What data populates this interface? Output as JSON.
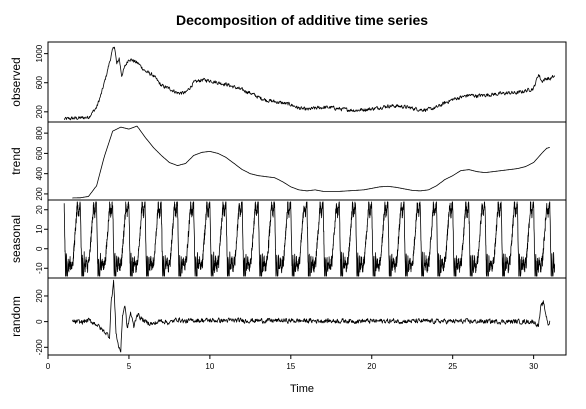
{
  "chart_data": {
    "type": "line",
    "title": "Decomposition of additive time series",
    "xlabel": "Time",
    "xlim": [
      0,
      32
    ],
    "xticks": [
      0,
      5,
      10,
      15,
      20,
      25,
      30
    ],
    "x_range": [
      1,
      31.3
    ],
    "panels": [
      {
        "name": "observed",
        "ylabel": "observed",
        "ylim": [
          60,
          1160
        ],
        "yticks": [
          200,
          600,
          1000
        ],
        "knots": [
          [
            1,
            100
          ],
          [
            1.5,
            110
          ],
          [
            2,
            115
          ],
          [
            2.5,
            125
          ],
          [
            3,
            260
          ],
          [
            3.3,
            450
          ],
          [
            3.6,
            700
          ],
          [
            3.8,
            880
          ],
          [
            4.0,
            1050
          ],
          [
            4.1,
            1110
          ],
          [
            4.25,
            850
          ],
          [
            4.4,
            940
          ],
          [
            4.55,
            700
          ],
          [
            4.75,
            820
          ],
          [
            5.0,
            930
          ],
          [
            5.3,
            900
          ],
          [
            5.6,
            860
          ],
          [
            6.0,
            760
          ],
          [
            6.5,
            700
          ],
          [
            7.0,
            560
          ],
          [
            7.5,
            520
          ],
          [
            8.0,
            460
          ],
          [
            8.5,
            460
          ],
          [
            9.0,
            600
          ],
          [
            9.5,
            640
          ],
          [
            10.0,
            630
          ],
          [
            10.5,
            600
          ],
          [
            11.0,
            580
          ],
          [
            11.5,
            540
          ],
          [
            12.0,
            500
          ],
          [
            12.5,
            460
          ],
          [
            13.0,
            400
          ],
          [
            13.5,
            360
          ],
          [
            14.0,
            340
          ],
          [
            14.5,
            320
          ],
          [
            15.0,
            300
          ],
          [
            15.5,
            250
          ],
          [
            16.0,
            230
          ],
          [
            16.5,
            250
          ],
          [
            17.0,
            260
          ],
          [
            17.5,
            260
          ],
          [
            18.0,
            240
          ],
          [
            18.5,
            230
          ],
          [
            19.0,
            220
          ],
          [
            19.5,
            230
          ],
          [
            20.0,
            240
          ],
          [
            20.5,
            260
          ],
          [
            21.0,
            280
          ],
          [
            21.5,
            280
          ],
          [
            22.0,
            270
          ],
          [
            22.5,
            250
          ],
          [
            23.0,
            230
          ],
          [
            23.5,
            230
          ],
          [
            24.0,
            260
          ],
          [
            24.5,
            320
          ],
          [
            25.0,
            370
          ],
          [
            25.5,
            400
          ],
          [
            26.0,
            430
          ],
          [
            26.5,
            420
          ],
          [
            27.0,
            430
          ],
          [
            27.5,
            440
          ],
          [
            28.0,
            450
          ],
          [
            28.5,
            460
          ],
          [
            29.0,
            460
          ],
          [
            29.5,
            490
          ],
          [
            30.0,
            520
          ],
          [
            30.3,
            720
          ],
          [
            30.5,
            620
          ],
          [
            30.8,
            660
          ],
          [
            31.0,
            650
          ],
          [
            31.3,
            690
          ]
        ],
        "noise": 22
      },
      {
        "name": "trend",
        "ylabel": "trend",
        "ylim": [
          140,
          910
        ],
        "yticks": [
          200,
          400,
          600,
          800
        ],
        "knots": [
          [
            1.5,
            160
          ],
          [
            2,
            162
          ],
          [
            2.5,
            175
          ],
          [
            3,
            280
          ],
          [
            3.5,
            580
          ],
          [
            4,
            820
          ],
          [
            4.5,
            860
          ],
          [
            5,
            840
          ],
          [
            5.5,
            870
          ],
          [
            6,
            760
          ],
          [
            6.5,
            660
          ],
          [
            7,
            580
          ],
          [
            7.5,
            510
          ],
          [
            8,
            480
          ],
          [
            8.5,
            500
          ],
          [
            9,
            580
          ],
          [
            9.5,
            610
          ],
          [
            10,
            620
          ],
          [
            10.5,
            600
          ],
          [
            11,
            560
          ],
          [
            11.5,
            500
          ],
          [
            12,
            440
          ],
          [
            12.5,
            400
          ],
          [
            13,
            380
          ],
          [
            13.5,
            370
          ],
          [
            14,
            360
          ],
          [
            14.5,
            320
          ],
          [
            15,
            270
          ],
          [
            15.5,
            240
          ],
          [
            16,
            230
          ],
          [
            16.5,
            240
          ],
          [
            17,
            225
          ],
          [
            17.5,
            225
          ],
          [
            18,
            225
          ],
          [
            18.5,
            230
          ],
          [
            19,
            235
          ],
          [
            19.5,
            240
          ],
          [
            20,
            255
          ],
          [
            20.5,
            270
          ],
          [
            21,
            275
          ],
          [
            21.5,
            265
          ],
          [
            22,
            250
          ],
          [
            22.5,
            235
          ],
          [
            23,
            230
          ],
          [
            23.5,
            240
          ],
          [
            24,
            280
          ],
          [
            24.5,
            340
          ],
          [
            25,
            380
          ],
          [
            25.5,
            430
          ],
          [
            26,
            440
          ],
          [
            26.5,
            420
          ],
          [
            27,
            410
          ],
          [
            27.5,
            420
          ],
          [
            28,
            430
          ],
          [
            28.5,
            440
          ],
          [
            29,
            450
          ],
          [
            29.5,
            470
          ],
          [
            30,
            510
          ],
          [
            30.5,
            600
          ],
          [
            30.8,
            650
          ],
          [
            31,
            660
          ]
        ],
        "noise": 0
      },
      {
        "name": "seasonal",
        "ylabel": "seasonal",
        "ylim": [
          -15,
          25
        ],
        "yticks": [
          -10,
          0,
          10,
          20
        ],
        "period": 1,
        "start": 1,
        "end": 31.3,
        "noise": 2.5
      },
      {
        "name": "random",
        "ylabel": "random",
        "ylim": [
          -260,
          340
        ],
        "yticks": [
          -200,
          0,
          200
        ],
        "knots": [
          [
            1.5,
            0
          ],
          [
            2,
            -5
          ],
          [
            2.5,
            10
          ],
          [
            3,
            -20
          ],
          [
            3.3,
            -60
          ],
          [
            3.6,
            -90
          ],
          [
            3.8,
            -120
          ],
          [
            3.9,
            150
          ],
          [
            4.0,
            250
          ],
          [
            4.05,
            320
          ],
          [
            4.2,
            -80
          ],
          [
            4.35,
            -190
          ],
          [
            4.5,
            -230
          ],
          [
            4.6,
            50
          ],
          [
            4.75,
            130
          ],
          [
            4.9,
            -60
          ],
          [
            5.1,
            70
          ],
          [
            5.3,
            -40
          ],
          [
            5.5,
            60
          ],
          [
            5.8,
            20
          ],
          [
            6,
            0
          ],
          [
            6.5,
            -20
          ],
          [
            7,
            10
          ],
          [
            7.5,
            -10
          ],
          [
            8,
            20
          ],
          [
            8.5,
            0
          ],
          [
            9,
            10
          ],
          [
            30,
            0
          ],
          [
            30.3,
            -30
          ],
          [
            30.45,
            110
          ],
          [
            30.6,
            150
          ],
          [
            30.75,
            60
          ],
          [
            30.9,
            -20
          ],
          [
            31,
            0
          ]
        ],
        "noise": 16
      }
    ]
  }
}
